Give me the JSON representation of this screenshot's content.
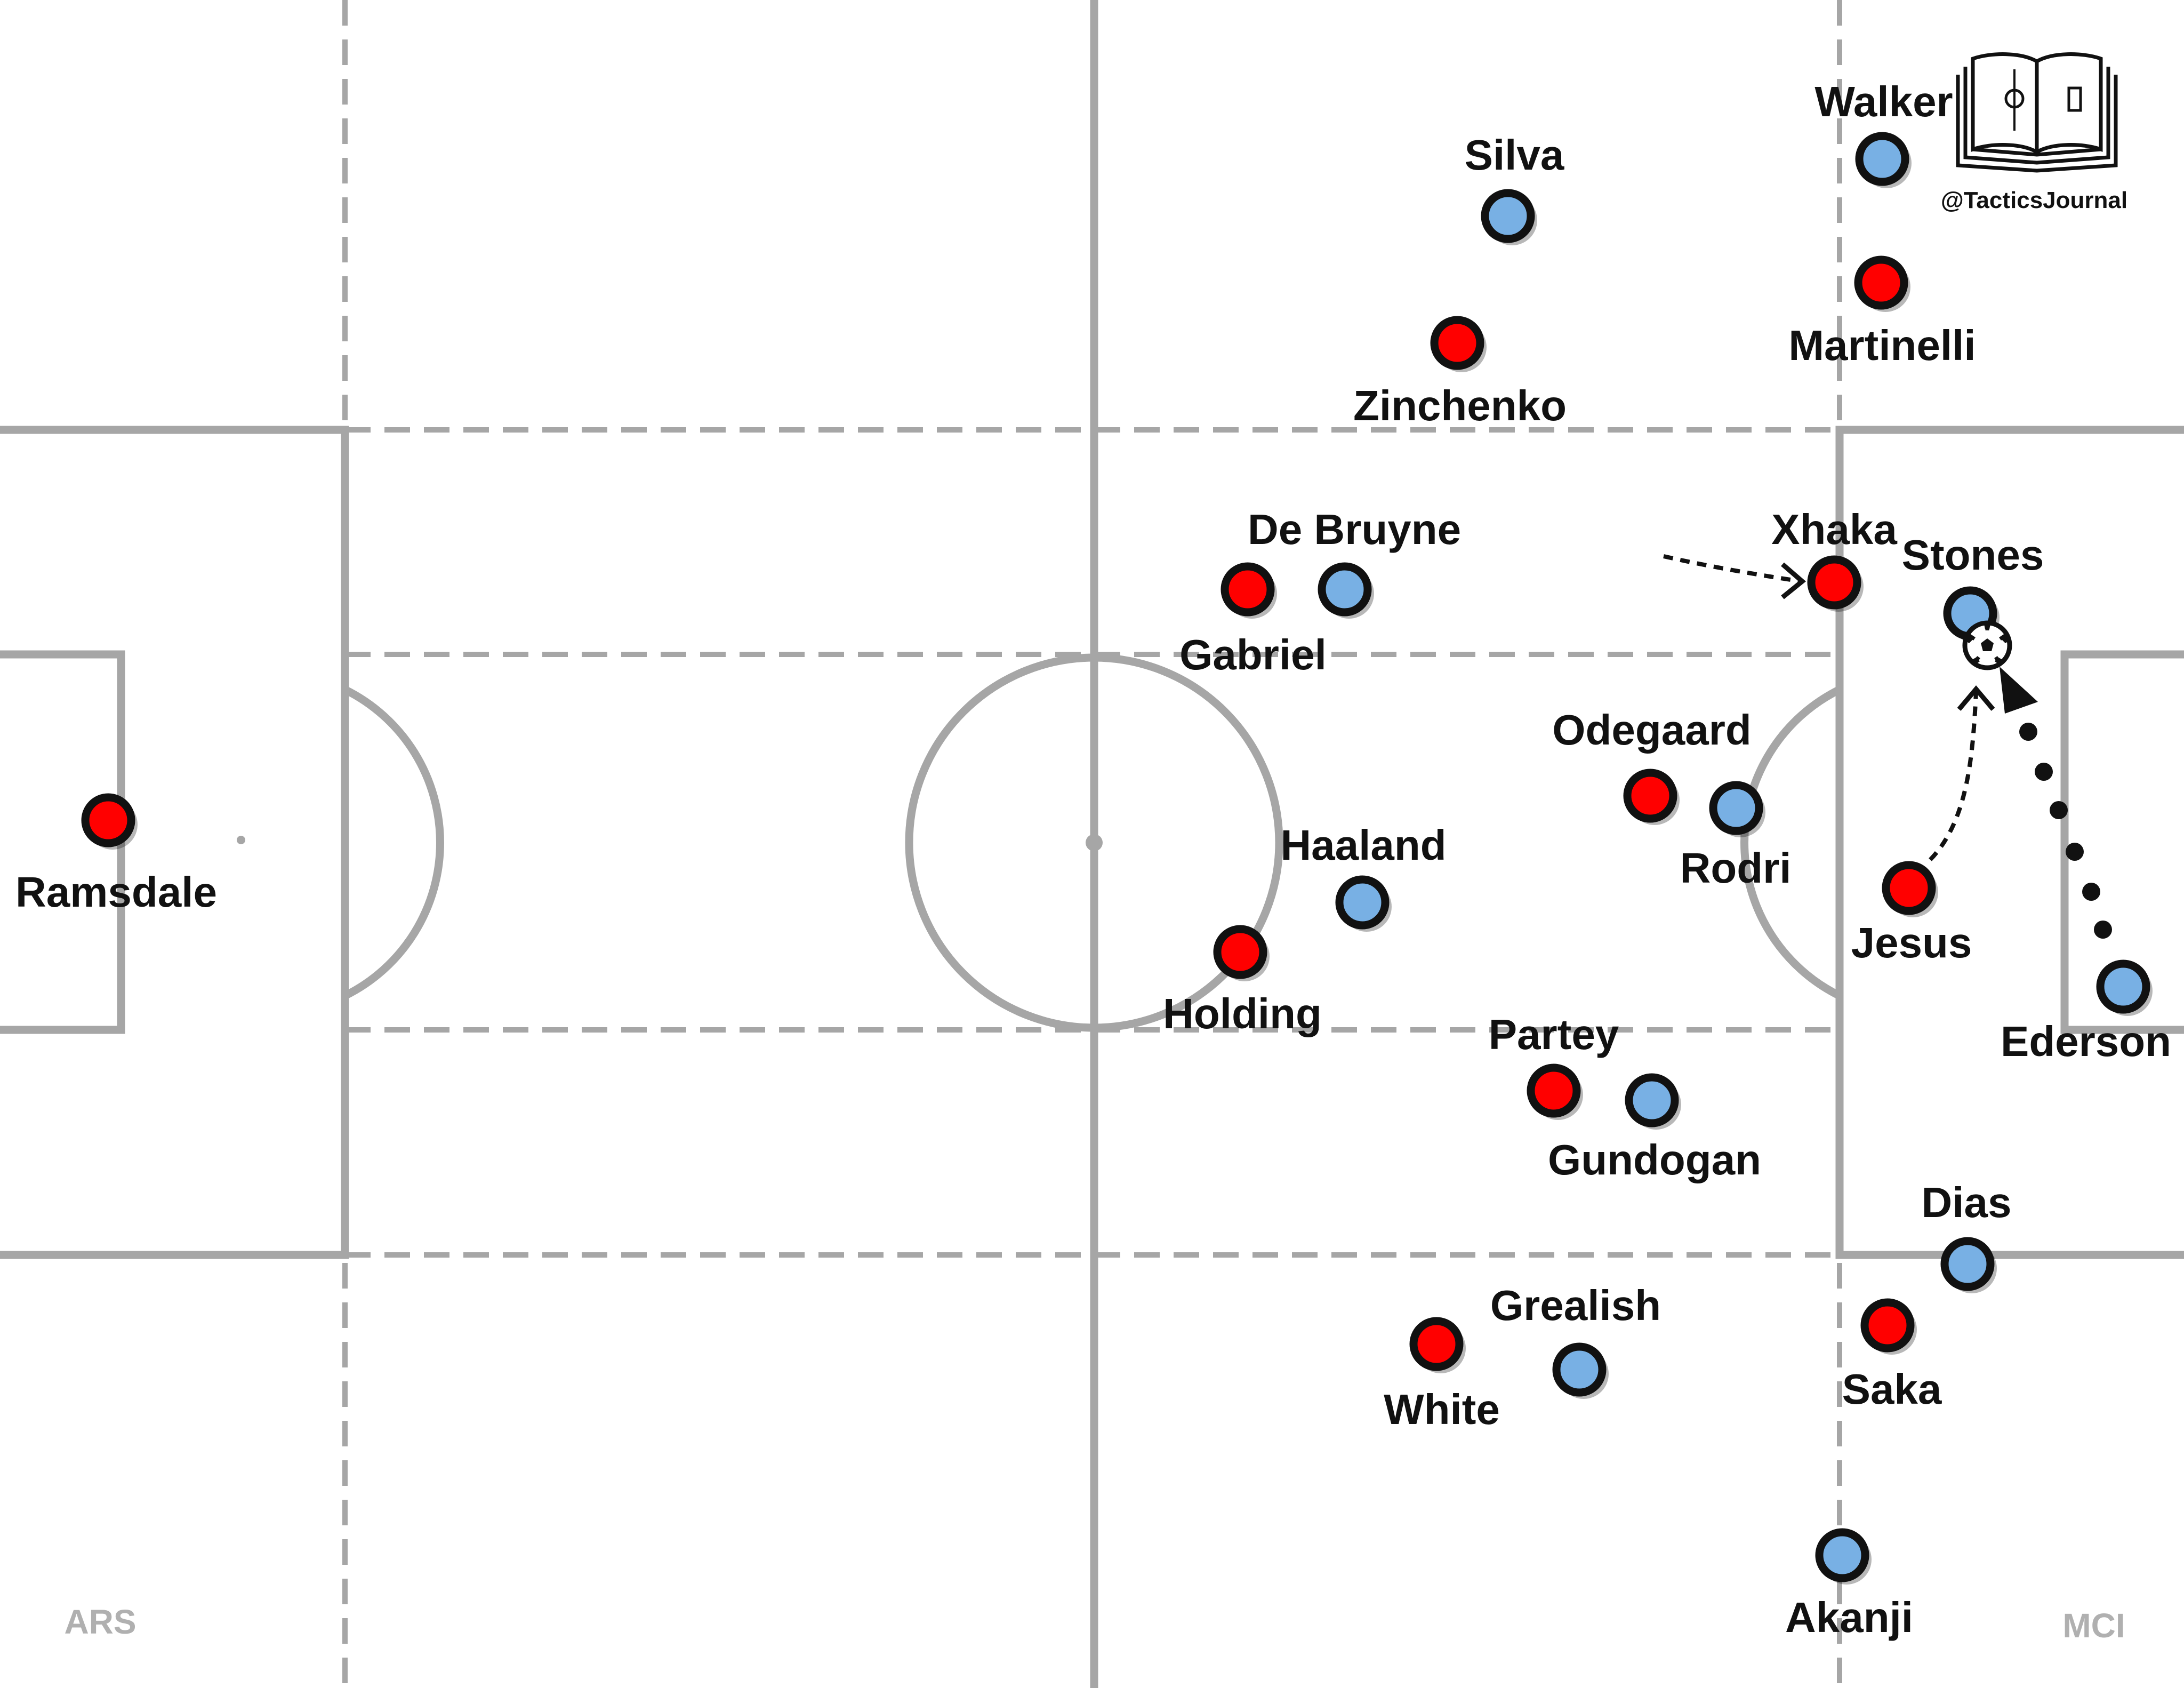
{
  "brand": {
    "handle": "@TacticsJournal",
    "logo_icon": "open-book-pitch-icon"
  },
  "teams": {
    "left": {
      "label": "ARS",
      "color": "#ff0000"
    },
    "right": {
      "label": "MCI",
      "color": "#78b0e4"
    }
  },
  "players": [
    {
      "id": "ramsdale",
      "name": "Ramsdale",
      "team": "ARS"
    },
    {
      "id": "gabriel",
      "name": "Gabriel",
      "team": "ARS"
    },
    {
      "id": "holding",
      "name": "Holding",
      "team": "ARS"
    },
    {
      "id": "zinchenko",
      "name": "Zinchenko",
      "team": "ARS"
    },
    {
      "id": "white",
      "name": "White",
      "team": "ARS"
    },
    {
      "id": "partey",
      "name": "Partey",
      "team": "ARS"
    },
    {
      "id": "odegaard",
      "name": "Odegaard",
      "team": "ARS"
    },
    {
      "id": "xhaka",
      "name": "Xhaka",
      "team": "ARS"
    },
    {
      "id": "martinelli",
      "name": "Martinelli",
      "team": "ARS"
    },
    {
      "id": "jesus",
      "name": "Jesus",
      "team": "ARS"
    },
    {
      "id": "saka",
      "name": "Saka",
      "team": "ARS"
    },
    {
      "id": "silva",
      "name": "Silva",
      "team": "MCI"
    },
    {
      "id": "debruyne",
      "name": "De Bruyne",
      "team": "MCI"
    },
    {
      "id": "haaland",
      "name": "Haaland",
      "team": "MCI"
    },
    {
      "id": "grealish",
      "name": "Grealish",
      "team": "MCI"
    },
    {
      "id": "gundogan",
      "name": "Gundogan",
      "team": "MCI"
    },
    {
      "id": "rodri",
      "name": "Rodri",
      "team": "MCI"
    },
    {
      "id": "walker",
      "name": "Walker",
      "team": "MCI"
    },
    {
      "id": "stones",
      "name": "Stones",
      "team": "MCI"
    },
    {
      "id": "dias",
      "name": "Dias",
      "team": "MCI"
    },
    {
      "id": "akanji",
      "name": "Akanji",
      "team": "MCI"
    },
    {
      "id": "ederson",
      "name": "Ederson",
      "team": "MCI"
    }
  ],
  "ball_icon": "soccer-ball-icon",
  "movements": [
    {
      "id": "xhaka-press",
      "style": "dashed-arrow"
    },
    {
      "id": "jesus-press",
      "style": "dashed-arrow"
    },
    {
      "id": "ederson-pass",
      "style": "dotted-arrow"
    }
  ]
}
